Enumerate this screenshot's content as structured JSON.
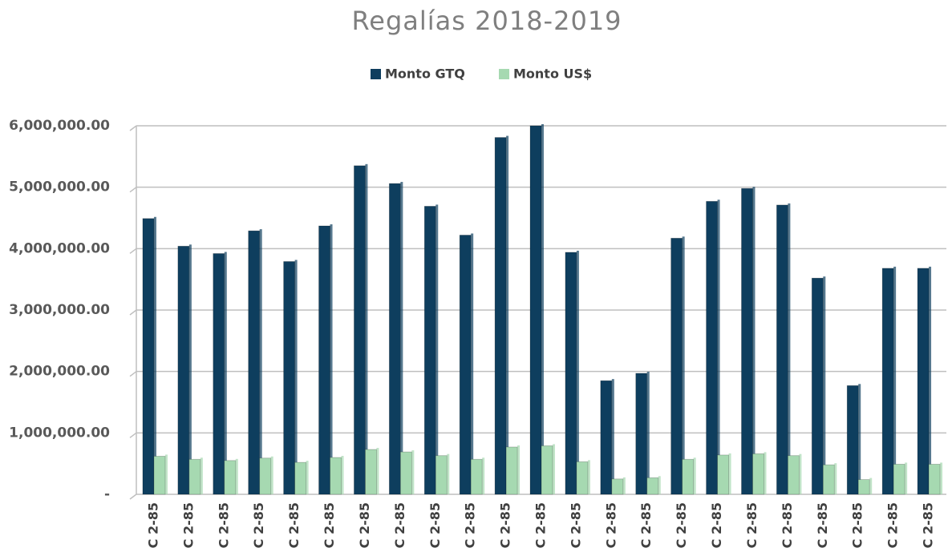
{
  "chart_data": {
    "type": "bar",
    "title": "Regalías 2018-2019",
    "categories": [
      "C 2-85",
      "C 2-85",
      "C 2-85",
      "C 2-85",
      "C 2-85",
      "C 2-85",
      "C 2-85",
      "C 2-85",
      "C 2-85",
      "C 2-85",
      "C 2-85",
      "C 2-85",
      "C 2-85",
      "C 2-85",
      "C 2-85",
      "C 2-85",
      "C 2-85",
      "C 2-85",
      "C 2-85",
      "C 2-85",
      "C 2-85",
      "C 2-85",
      "C 2-85"
    ],
    "series": [
      {
        "name": "Monto GTQ",
        "color": "#0e3e5e",
        "values": [
          4490000,
          4040000,
          3920000,
          4290000,
          3790000,
          4370000,
          5350000,
          5060000,
          4690000,
          4220000,
          5810000,
          6000000,
          3940000,
          1850000,
          1970000,
          4170000,
          4770000,
          4980000,
          4710000,
          3520000,
          1770000,
          3680000,
          3680000
        ]
      },
      {
        "name": "Monto US$",
        "color": "#a6d9b1",
        "values": [
          620000,
          570000,
          550000,
          590000,
          520000,
          600000,
          730000,
          690000,
          630000,
          570000,
          770000,
          790000,
          530000,
          250000,
          270000,
          570000,
          640000,
          660000,
          630000,
          480000,
          240000,
          490000,
          490000
        ]
      }
    ],
    "ylim": [
      0,
      6000000
    ],
    "yticks": [
      {
        "value": 0,
        "label": "-"
      },
      {
        "value": 1000000,
        "label": "1,000,000.00"
      },
      {
        "value": 2000000,
        "label": "2,000,000.00"
      },
      {
        "value": 3000000,
        "label": "3,000,000.00"
      },
      {
        "value": 4000000,
        "label": "4,000,000.00"
      },
      {
        "value": 5000000,
        "label": "5,000,000.00"
      },
      {
        "value": 6000000,
        "label": "6,000,000.00"
      }
    ],
    "grid": true,
    "legend": "top"
  }
}
